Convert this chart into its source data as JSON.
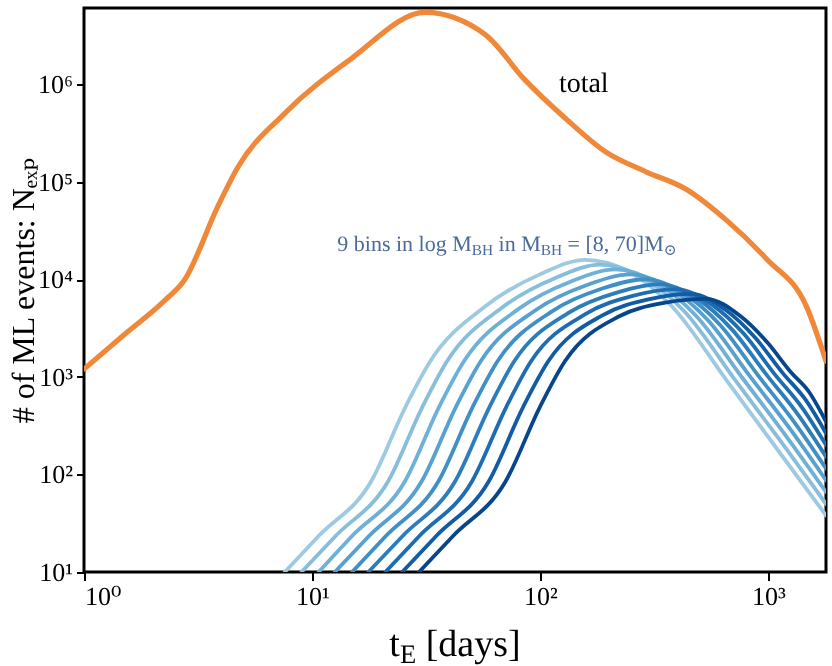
{
  "chart_data": {
    "type": "line",
    "xlabel": "t$_{E}$ [days]",
    "ylabel": "# of ML events: Nₑₓₚ",
    "log": "xy",
    "grid": false,
    "line_style": "solid",
    "marker": "none",
    "xlim": [
      1,
      1800
    ],
    "xticks": [
      {
        "value": 1,
        "label": "10⁰"
      },
      {
        "value": 10,
        "label": "10¹"
      },
      {
        "value": 100,
        "label": "10²"
      },
      {
        "value": 1000,
        "label": "10³"
      }
    ],
    "ylim": [
      10,
      6000000
    ],
    "yticks": [
      {
        "value": 10,
        "label": "10¹"
      },
      {
        "value": 100,
        "label": "10²"
      },
      {
        "value": 1000,
        "label": "10³"
      },
      {
        "value": 10000,
        "label": "10⁴"
      },
      {
        "value": 100000,
        "label": "10⁵"
      },
      {
        "value": 1000000,
        "label": "10⁶"
      }
    ],
    "annotations": [
      "9 bins in log M$_{BH}$ in M$_{BH}$ = [8, 70]M$_{⊙}$"
    ],
    "series": [
      {
        "name": "total",
        "color": "#f0883a",
        "x": [
          1,
          1.5,
          2.25,
          2.76,
          3.87,
          4.73,
          7.6,
          14.8,
          31.4,
          57.6,
          86,
          130,
          195,
          292,
          440,
          660,
          990,
          1480,
          1800
        ],
        "values": [
          1200,
          2700,
          6000,
          9800,
          56000,
          140000,
          500000,
          1800000,
          5400000,
          3200000,
          1100000,
          440000,
          200000,
          126000,
          83000,
          40000,
          16000,
          5200,
          1450
        ]
      },
      {
        "color": "#9ecae1",
        "x": [
          7.6,
          10.7,
          18.2,
          25.7,
          33.1,
          57.5,
          100,
          158,
          240,
          380,
          661,
          1148,
          1800
        ],
        "values": [
          10,
          23.4,
          85,
          490,
          1450,
          5250,
          11200,
          15800,
          12300,
          5250,
          912,
          158,
          38
        ]
      },
      {
        "color": "#88bedc",
        "x": [
          9.0,
          12.7,
          21.6,
          30.5,
          39.2,
          68.1,
          117,
          184,
          277,
          429,
          717,
          1188,
          1800
        ],
        "values": [
          10,
          23.4,
          85,
          490,
          1450,
          5100,
          10300,
          14100,
          10700,
          4720,
          936,
          191,
          50
        ]
      },
      {
        "color": "#6fb0d7",
        "x": [
          10.7,
          15.0,
          25.6,
          36.1,
          46.5,
          80.7,
          137,
          215,
          320,
          483,
          777,
          1230,
          1800
        ],
        "values": [
          10,
          23.4,
          85,
          490,
          1450,
          4960,
          9480,
          12600,
          9380,
          4240,
          960,
          230,
          66
        ]
      },
      {
        "color": "#58a1ce",
        "x": [
          12.6,
          17.8,
          30.3,
          42.8,
          55.1,
          95.7,
          161,
          250,
          370,
          545,
          842,
          1273,
          1800
        ],
        "values": [
          10,
          23.4,
          85,
          490,
          1450,
          4810,
          8720,
          11200,
          8190,
          3810,
          985,
          277,
          87
        ]
      },
      {
        "color": "#4090c5",
        "x": [
          15.0,
          21.1,
          35.9,
          50.7,
          65.3,
          113,
          188,
          291,
          427,
          615,
          913,
          1318,
          1800
        ],
        "values": [
          10,
          23.4,
          85,
          490,
          1450,
          4680,
          8020,
          9980,
          7150,
          3430,
          1010,
          334,
          115
        ]
      },
      {
        "color": "#2d7dbb",
        "x": [
          17.7,
          25.0,
          42.5,
          60.1,
          77.3,
          134,
          221,
          339,
          493,
          694,
          990,
          1364,
          1800
        ],
        "values": [
          10,
          23.4,
          85,
          490,
          1450,
          4540,
          7380,
          8890,
          6250,
          3080,
          1040,
          403,
          152
        ]
      },
      {
        "color": "#1f6db1",
        "x": [
          21.0,
          29.6,
          50.4,
          71.2,
          91.6,
          159,
          258,
          395,
          570,
          783,
          1073,
          1411,
          1800
        ],
        "values": [
          10,
          23.4,
          85,
          490,
          1450,
          4410,
          6790,
          7920,
          5460,
          2770,
          1060,
          486,
          200
        ]
      },
      {
        "color": "#115ca5",
        "x": [
          24.9,
          35.1,
          59.7,
          84.4,
          109,
          189,
          303,
          460,
          658,
          883,
          1163,
          1461,
          1800
        ],
        "values": [
          10,
          23.4,
          85,
          490,
          1450,
          4290,
          6250,
          7060,
          4770,
          2490,
          1090,
          586,
          264
        ]
      },
      {
        "color": "#08468b",
        "x": [
          29.5,
          41.6,
          70.8,
          100,
          129,
          223,
          355,
          536,
          760,
          996,
          1260,
          1512,
          1800
        ],
        "values": [
          10,
          23.4,
          85,
          490,
          1450,
          4170,
          5750,
          6290,
          4160,
          2240,
          1120,
          707,
          347
        ]
      }
    ]
  }
}
